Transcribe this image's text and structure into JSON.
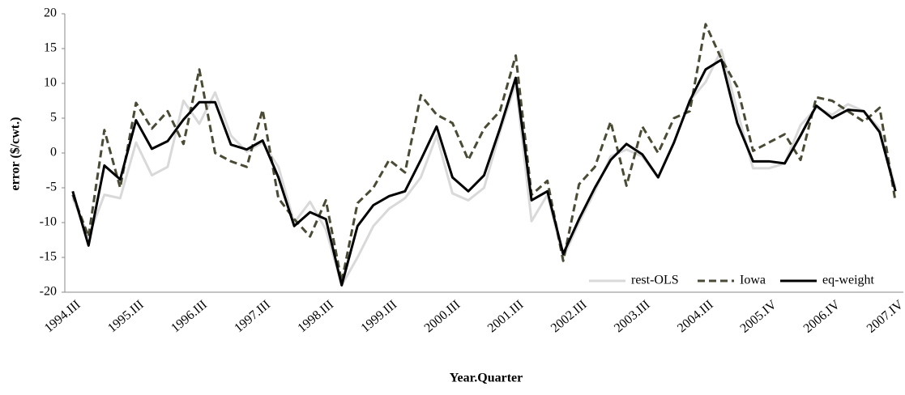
{
  "chart_data": {
    "type": "line",
    "x_label": "Year.Quarter",
    "y_label": "error  ($/cwt.)",
    "categories": [
      "1994.III",
      null,
      null,
      null,
      "1995.III",
      null,
      null,
      null,
      "1996.III",
      null,
      null,
      null,
      "1997.III",
      null,
      null,
      null,
      "1998.III",
      null,
      null,
      null,
      "1999.III",
      null,
      null,
      null,
      "2000.III",
      null,
      null,
      null,
      "2001.III",
      null,
      null,
      null,
      "2002.III",
      null,
      null,
      null,
      "2003.III",
      null,
      null,
      null,
      "2004.III",
      null,
      null,
      null,
      "2005.IV",
      null,
      null,
      null,
      "2006.IV",
      null,
      null,
      null,
      "2007.IV"
    ],
    "series": [
      {
        "name": "rest-OLS",
        "color": "#d9d9d9",
        "dashed": false,
        "values": [
          -6.5,
          -12,
          -6,
          -6.5,
          1.5,
          -3.2,
          -2,
          7.5,
          4.2,
          8.7,
          2.5,
          0.2,
          1.5,
          -2,
          -10,
          -7,
          -11,
          -19,
          -15,
          -10.5,
          -8,
          -6.5,
          -3.5,
          2.5,
          -5.8,
          -6.8,
          -5,
          3,
          10,
          -9.8,
          -6,
          -15,
          -10,
          -5.5,
          -0.5,
          0.5,
          -0.5,
          -3.5,
          1.5,
          7.5,
          10.2,
          14.8,
          6,
          -2.2,
          -2.2,
          -1.5,
          4,
          6.5,
          5.5,
          7,
          6,
          3.5,
          -5
        ]
      },
      {
        "name": "Iowa",
        "color": "#4a4a35",
        "dashed": true,
        "values": [
          -6,
          -12,
          3.3,
          -5,
          7.2,
          3.5,
          6,
          1.3,
          12,
          0,
          -1.2,
          -2,
          6.2,
          -6.5,
          -9.5,
          -12,
          -6.8,
          -18.5,
          -7.2,
          -5,
          -1,
          -2.8,
          8.3,
          5.5,
          4.3,
          -1,
          3.5,
          6,
          14,
          -6,
          -4,
          -15.5,
          -4.5,
          -2,
          4.5,
          -4.7,
          3.8,
          0,
          5,
          6,
          18.5,
          13.5,
          9.5,
          0.3,
          1.5,
          2.7,
          -1,
          8,
          7.5,
          6,
          4.5,
          6.5,
          -7
        ]
      },
      {
        "name": "eq-weight",
        "color": "#000000",
        "dashed": false,
        "values": [
          -5.5,
          -13.3,
          -1.8,
          -3.8,
          4.7,
          0.6,
          1.7,
          4.8,
          7.3,
          7.3,
          1.2,
          0.5,
          1.8,
          -3.5,
          -10.5,
          -8.5,
          -9.5,
          -19,
          -10.5,
          -7.5,
          -6.2,
          -5.5,
          -1,
          3.8,
          -3.5,
          -5.5,
          -3.2,
          3.5,
          10.8,
          -6.8,
          -5.5,
          -14.5,
          -9.5,
          -5,
          -1,
          1.3,
          -0.2,
          -3.5,
          1.5,
          7.5,
          12,
          13.4,
          4.3,
          -1.2,
          -1.2,
          -1.5,
          2.5,
          6.8,
          5,
          6.2,
          6,
          3,
          -5.5
        ]
      }
    ],
    "ylim": [
      -20,
      20
    ],
    "yticks": [
      -20,
      -15,
      -10,
      -5,
      0,
      5,
      10,
      15,
      20
    ],
    "grid": false,
    "legend": "lower right"
  }
}
